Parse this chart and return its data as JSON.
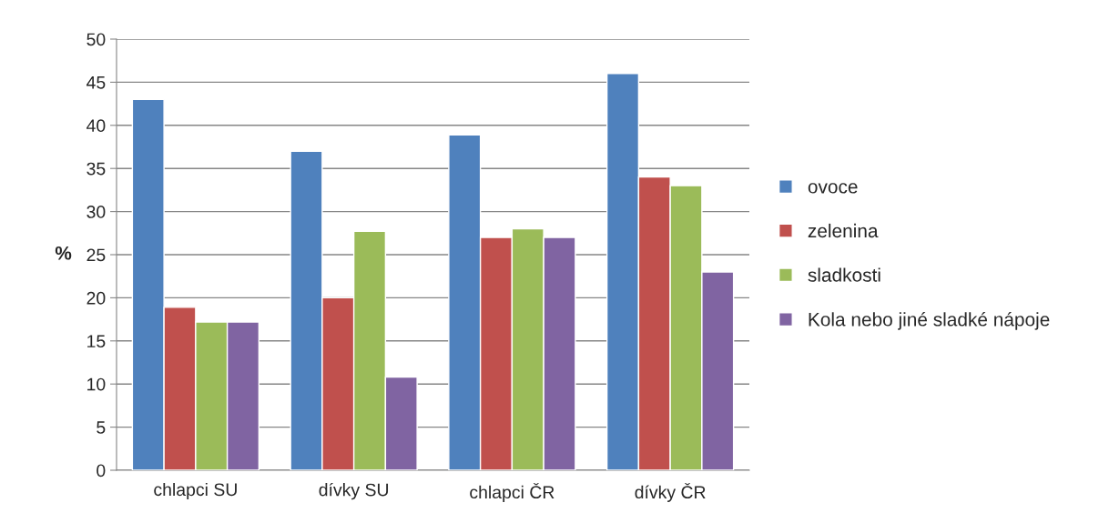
{
  "chart_data": {
    "type": "bar",
    "ylabel": "%",
    "categories": [
      "chlapci SU",
      "dívky SU",
      "chlapci ČR",
      "dívky ČR"
    ],
    "series": [
      {
        "name": "ovoce",
        "color": "#4f81bd",
        "values": [
          43,
          37,
          38.9,
          46
        ]
      },
      {
        "name": "zelenina",
        "color": "#c0504d",
        "values": [
          18.9,
          20,
          27,
          34
        ]
      },
      {
        "name": "sladkosti",
        "color": "#9bbb59",
        "values": [
          17.2,
          27.7,
          28,
          33
        ]
      },
      {
        "name": "Kola nebo jiné sladké nápoje",
        "color": "#8064a2",
        "values": [
          17.2,
          10.8,
          27,
          23
        ]
      }
    ],
    "ylim": [
      0,
      50
    ],
    "yticks": [
      0,
      5,
      10,
      15,
      20,
      25,
      30,
      35,
      40,
      45,
      50
    ],
    "grid": "y",
    "legend": "right"
  }
}
